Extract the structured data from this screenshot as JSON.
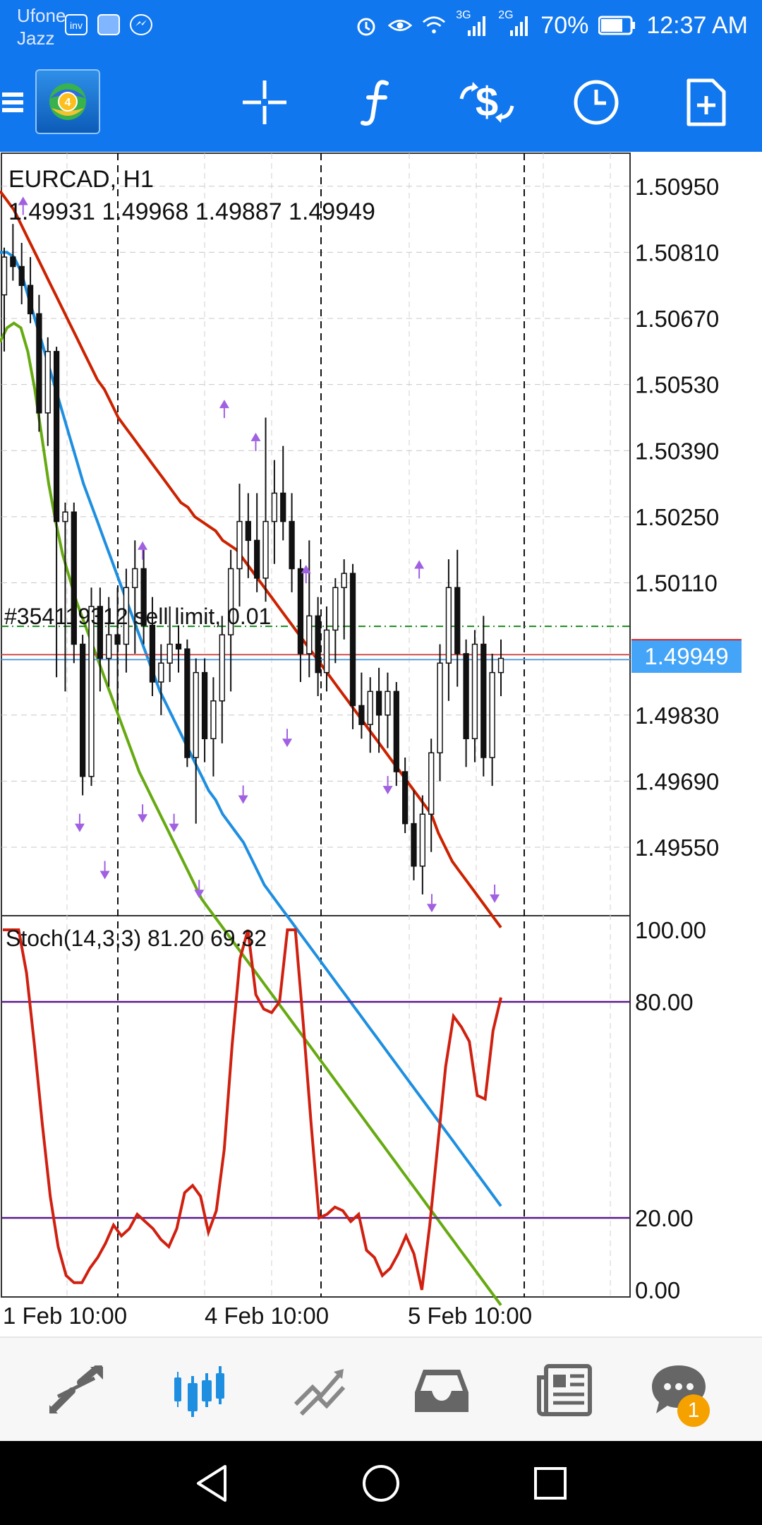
{
  "status_bar": {
    "carrier_line1": "Ufone",
    "carrier_line2": "Jazz",
    "mini_icon_label": "inv",
    "network_3g": "3G",
    "network_2g": "2G",
    "battery": "70%",
    "time": "12:37 AM"
  },
  "chart_data": {
    "type": "candlestick",
    "symbol_title": "EURCAD, H1",
    "ohlc": "1.49931 1.49968 1.49887 1.49949",
    "order_label": "#354119312 sell limit, 0.01",
    "current_price": "1.49949",
    "current_price_value": 1.49949,
    "order_price_value": 1.50018,
    "price_axis_ticks": [
      "1.50950",
      "1.50810",
      "1.50670",
      "1.50530",
      "1.50390",
      "1.50250",
      "1.50110",
      "1.49830",
      "1.49690",
      "1.49550"
    ],
    "price_range": [
      1.49405,
      1.5102
    ],
    "time_labels": [
      "1 Feb 10:00",
      "4 Feb 10:00",
      "5 Feb 10:00"
    ],
    "moving_averages": [
      {
        "color": "#CC2200",
        "values": [
          1.5094,
          1.5092,
          1.509,
          1.5087,
          1.5084,
          1.5081,
          1.5078,
          1.5075,
          1.5072,
          1.5069,
          1.5066,
          1.5063,
          1.506,
          1.5057,
          1.5054,
          1.5052,
          1.5049,
          1.5046,
          1.5044,
          1.5042,
          1.504,
          1.5038,
          1.5036,
          1.5034,
          1.5032,
          1.503,
          1.5028,
          1.5027,
          1.5025,
          1.5024,
          1.5023,
          1.5022,
          1.502,
          1.5019,
          1.5018,
          1.5016,
          1.5014,
          1.5012,
          1.501,
          1.5008,
          1.5006,
          1.5004,
          1.5002,
          1.5,
          1.4998,
          1.4996,
          1.4994,
          1.4992,
          1.499,
          1.4988,
          1.4986,
          1.4984,
          1.4982,
          1.498,
          1.4978,
          1.4976,
          1.4974,
          1.4972,
          1.497,
          1.4968,
          1.4966,
          1.4964,
          1.4962,
          1.4958,
          1.4955,
          1.4952,
          1.495,
          1.4948,
          1.4946,
          1.4944,
          1.4942,
          1.494,
          1.4938
        ]
      },
      {
        "color": "#1E8FE0",
        "values": [
          1.5081,
          1.5081,
          1.508,
          1.5077,
          1.5072,
          1.5067,
          1.5062,
          1.5057,
          1.5052,
          1.5047,
          1.5042,
          1.5037,
          1.5032,
          1.5028,
          1.5024,
          1.502,
          1.5016,
          1.5012,
          1.5008,
          1.5004,
          1.5,
          1.4996,
          1.4992,
          1.4988,
          1.4985,
          1.4982,
          1.4979,
          1.4976,
          1.4973,
          1.497,
          1.4967,
          1.4965,
          1.4962,
          1.496,
          1.4958,
          1.4956,
          1.4953,
          1.495,
          1.4947,
          1.4945,
          1.4943,
          1.4941,
          1.4939,
          1.4937,
          1.4935,
          1.4933,
          1.4931,
          1.4929,
          1.4927,
          1.4925,
          1.4923,
          1.4921,
          1.4919,
          1.4917,
          1.4915,
          1.4913,
          1.4911,
          1.4909,
          1.4907,
          1.4905,
          1.4903,
          1.4901,
          1.4899,
          1.4897,
          1.4895,
          1.4893,
          1.4891,
          1.4889,
          1.4887,
          1.4885,
          1.4883,
          1.4881,
          1.4879
        ]
      },
      {
        "color": "#66AA11",
        "values": [
          1.5062,
          1.5065,
          1.5066,
          1.5065,
          1.506,
          1.5052,
          1.5042,
          1.5032,
          1.5024,
          1.5017,
          1.5012,
          1.5007,
          1.5003,
          1.4999,
          1.4995,
          1.4991,
          1.4987,
          1.4983,
          1.4979,
          1.4975,
          1.4971,
          1.4968,
          1.4965,
          1.4962,
          1.4959,
          1.4956,
          1.4953,
          1.495,
          1.4947,
          1.4944,
          1.4942,
          1.494,
          1.4938,
          1.4936,
          1.4934,
          1.4932,
          1.493,
          1.4928,
          1.4926,
          1.4924,
          1.4922,
          1.492,
          1.4918,
          1.4916,
          1.4914,
          1.4912,
          1.491,
          1.4908,
          1.4906,
          1.4904,
          1.4902,
          1.49,
          1.4898,
          1.4896,
          1.4894,
          1.4892,
          1.489,
          1.4888,
          1.4886,
          1.4884,
          1.4882,
          1.488,
          1.4878,
          1.4876,
          1.4874,
          1.4872,
          1.487,
          1.4868,
          1.4866,
          1.4864,
          1.4862,
          1.486,
          1.4858
        ]
      }
    ],
    "candles": [
      [
        1.5072,
        1.5082,
        1.506,
        1.508
      ],
      [
        1.508,
        1.5087,
        1.5075,
        1.5078
      ],
      [
        1.5078,
        1.5083,
        1.507,
        1.5074
      ],
      [
        1.5074,
        1.508,
        1.5066,
        1.5068
      ],
      [
        1.5068,
        1.5072,
        1.5043,
        1.5047
      ],
      [
        1.5047,
        1.5063,
        1.504,
        1.506
      ],
      [
        1.506,
        1.5061,
        1.4991,
        1.5024
      ],
      [
        1.5024,
        1.5028,
        1.4988,
        1.5026
      ],
      [
        1.5026,
        1.5028,
        1.4994,
        1.4998
      ],
      [
        1.4998,
        1.5,
        1.4966,
        1.497
      ],
      [
        1.497,
        1.501,
        1.4968,
        1.5006
      ],
      [
        1.5006,
        1.501,
        1.4988,
        1.4995
      ],
      [
        1.4995,
        1.5008,
        1.4989,
        1.5
      ],
      [
        1.5,
        1.501,
        1.4985,
        1.4998
      ],
      [
        1.4998,
        1.5014,
        1.4992,
        1.501
      ],
      [
        1.501,
        1.502,
        1.4996,
        1.5014
      ],
      [
        1.5014,
        1.5018,
        1.4998,
        1.5002
      ],
      [
        1.5002,
        1.5008,
        1.4987,
        1.499
      ],
      [
        1.499,
        1.4998,
        1.4983,
        1.4994
      ],
      [
        1.4994,
        1.5006,
        1.499,
        1.4998
      ],
      [
        1.4998,
        1.5002,
        1.4992,
        1.4997
      ],
      [
        1.4997,
        1.4999,
        1.4972,
        1.4974
      ],
      [
        1.4974,
        1.4995,
        1.496,
        1.4992
      ],
      [
        1.4992,
        1.4995,
        1.4973,
        1.4978
      ],
      [
        1.4978,
        1.4991,
        1.497,
        1.4986
      ],
      [
        1.4986,
        1.5004,
        1.4977,
        1.5
      ],
      [
        1.5,
        1.5018,
        1.4988,
        1.5014
      ],
      [
        1.5014,
        1.5032,
        1.5006,
        1.5024
      ],
      [
        1.5024,
        1.503,
        1.5012,
        1.502
      ],
      [
        1.502,
        1.503,
        1.5009,
        1.5012
      ],
      [
        1.5012,
        1.5046,
        1.5007,
        1.5024
      ],
      [
        1.5024,
        1.5037,
        1.5015,
        1.503
      ],
      [
        1.503,
        1.504,
        1.502,
        1.5024
      ],
      [
        1.5024,
        1.503,
        1.5009,
        1.5014
      ],
      [
        1.5014,
        1.5016,
        1.499,
        1.4996
      ],
      [
        1.4996,
        1.502,
        1.4991,
        1.5004
      ],
      [
        1.5004,
        1.5008,
        1.4987,
        1.4992
      ],
      [
        1.4992,
        1.5006,
        1.4988,
        1.5001
      ],
      [
        1.5001,
        1.5012,
        1.4994,
        1.501
      ],
      [
        1.501,
        1.5016,
        1.4999,
        1.5013
      ],
      [
        1.5013,
        1.5015,
        1.498,
        1.4985
      ],
      [
        1.4985,
        1.4992,
        1.4978,
        1.4981
      ],
      [
        1.4981,
        1.4991,
        1.4975,
        1.4988
      ],
      [
        1.4988,
        1.4993,
        1.4975,
        1.4983
      ],
      [
        1.4983,
        1.4992,
        1.4976,
        1.4988
      ],
      [
        1.4988,
        1.499,
        1.4968,
        1.4971
      ],
      [
        1.4971,
        1.4974,
        1.4958,
        1.496
      ],
      [
        1.496,
        1.4967,
        1.4948,
        1.4951
      ],
      [
        1.4951,
        1.4966,
        1.4945,
        1.4962
      ],
      [
        1.4962,
        1.4978,
        1.4954,
        1.4975
      ],
      [
        1.4975,
        1.4998,
        1.4969,
        1.4994
      ],
      [
        1.4994,
        1.5016,
        1.4986,
        1.501
      ],
      [
        1.501,
        1.5018,
        1.4989,
        1.4996
      ],
      [
        1.4996,
        1.4999,
        1.4972,
        1.4978
      ],
      [
        1.4978,
        1.5001,
        1.4973,
        1.4998
      ],
      [
        1.4998,
        1.5004,
        1.497,
        1.4974
      ],
      [
        1.4974,
        1.4996,
        1.4968,
        1.4992
      ],
      [
        1.4992,
        1.4999,
        1.4987,
        1.4995
      ]
    ],
    "fractals_up": [
      [
        3,
        1.5091
      ],
      [
        22,
        1.5018
      ],
      [
        35,
        1.5048
      ],
      [
        40,
        1.5041
      ],
      [
        48,
        1.5013
      ],
      [
        66,
        1.5014
      ]
    ],
    "fractals_down": [
      [
        12,
        1.496
      ],
      [
        16,
        1.495
      ],
      [
        22,
        1.4962
      ],
      [
        27,
        1.496
      ],
      [
        31,
        1.4946
      ],
      [
        38,
        1.4966
      ],
      [
        45,
        1.4978
      ],
      [
        61,
        1.4968
      ],
      [
        68,
        1.4943
      ],
      [
        78,
        1.4945
      ]
    ],
    "stochastic": {
      "label": "Stoch(14,3,3) 81.20 69.32",
      "axis_ticks": [
        "100.00",
        "80.00",
        "20.00",
        "0.00"
      ],
      "ylim": [
        0,
        100
      ],
      "levels": [
        80,
        20
      ],
      "main_values": [
        100,
        100,
        100,
        88,
        68,
        46,
        26,
        12,
        4,
        2,
        2,
        6,
        9,
        13,
        18,
        15,
        17,
        21,
        19,
        17,
        14,
        12,
        17,
        27,
        29,
        26,
        16,
        22,
        39,
        68,
        92,
        100,
        82,
        78,
        77,
        80,
        100,
        100,
        74,
        46,
        20,
        21,
        23,
        22,
        19,
        21,
        11,
        9,
        4,
        6,
        10,
        15,
        10,
        0,
        18,
        40,
        62,
        76,
        73,
        69,
        54,
        53,
        72,
        81.2
      ]
    }
  },
  "toolbar": {
    "icons": [
      "menu-icon",
      "app-logo",
      "crosshair-icon",
      "indicators-icon",
      "trade-icon",
      "timeframe-icon",
      "objects-icon"
    ]
  },
  "bottom_nav": {
    "items": [
      "quotes",
      "chart",
      "trade",
      "history",
      "news",
      "messages"
    ],
    "badge": "1"
  }
}
